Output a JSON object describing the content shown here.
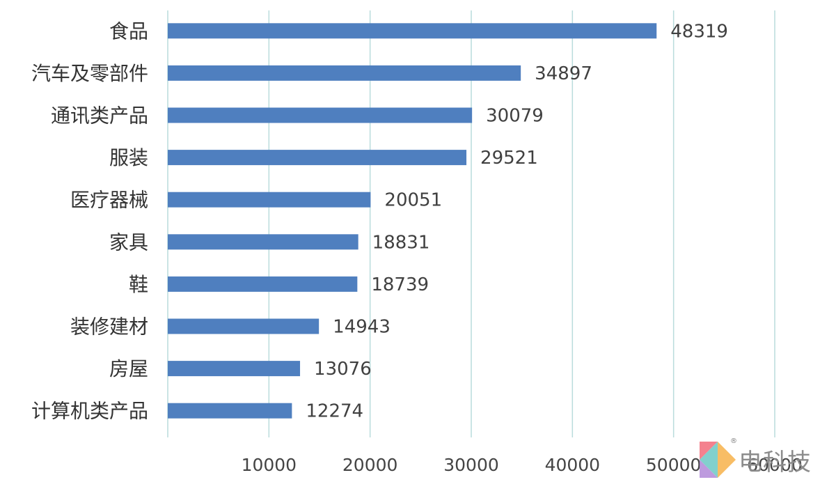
{
  "chart_data": {
    "type": "bar",
    "orientation": "horizontal",
    "title": "",
    "xlabel": "",
    "ylabel": "",
    "categories": [
      "食品",
      "汽车及零部件",
      "通讯类产品",
      "服装",
      "医疗器械",
      "家具",
      "鞋",
      "装修建材",
      "房屋",
      "计算机类产品"
    ],
    "values": [
      48319,
      34897,
      30079,
      29521,
      20051,
      18831,
      18739,
      14943,
      13076,
      12274
    ],
    "xlim": [
      0,
      60000
    ],
    "xticks": [
      10000,
      20000,
      30000,
      40000,
      50000,
      60000
    ],
    "grid": "vertical",
    "data_labels": true,
    "bar_color": "#4f7fbf"
  },
  "watermark": {
    "text": "电科技",
    "colors": [
      "#f26b7a",
      "#f7b24a",
      "#6cc8c4",
      "#b28ad8"
    ]
  }
}
